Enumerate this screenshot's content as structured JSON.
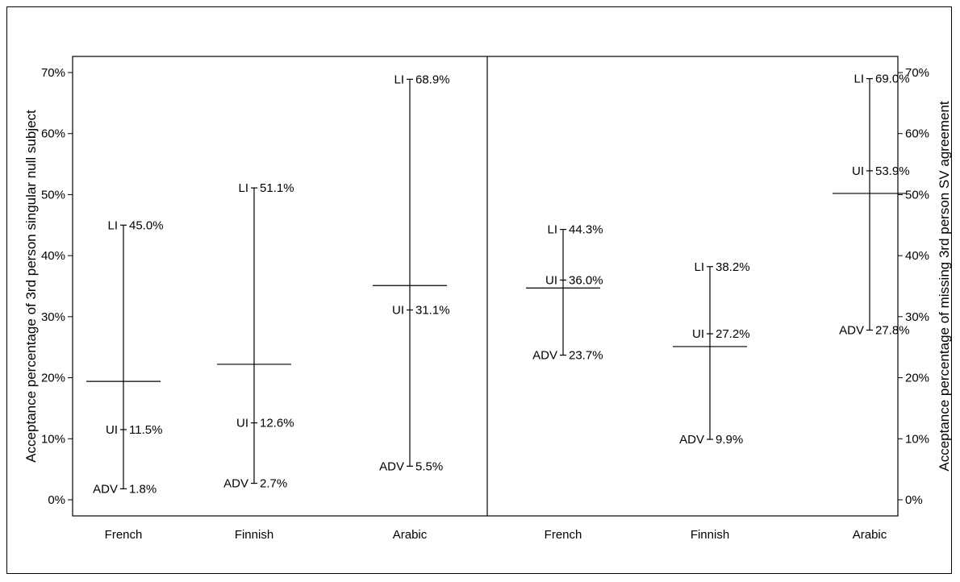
{
  "chart_data": [
    {
      "type": "interval",
      "ylabel": "Acceptance percentage of 3rd person singular null subject",
      "y_axis_side": "left",
      "ylim": [
        0,
        70
      ],
      "yticks": [
        "0%",
        "10%",
        "20%",
        "30%",
        "40%",
        "50%",
        "60%",
        "70%"
      ],
      "categories": [
        "French",
        "Finnish",
        "Arabic"
      ],
      "point_labels": {
        "upper": "LI",
        "middle": "UI",
        "lower": "ADV"
      },
      "series": [
        {
          "category": "French",
          "LI": 45.0,
          "LI_label": "45.0%",
          "UI": 11.5,
          "UI_label": "11.5%",
          "ADV": 1.8,
          "ADV_label": "1.8%",
          "mean": 19.4
        },
        {
          "category": "Finnish",
          "LI": 51.1,
          "LI_label": "51.1%",
          "UI": 12.6,
          "UI_label": "12.6%",
          "ADV": 2.7,
          "ADV_label": "2.7%",
          "mean": 22.2
        },
        {
          "category": "Arabic",
          "LI": 68.9,
          "LI_label": "68.9%",
          "UI": 31.1,
          "UI_label": "31.1%",
          "ADV": 5.5,
          "ADV_label": "5.5%",
          "mean": 35.1
        }
      ]
    },
    {
      "type": "interval",
      "ylabel": "Acceptance percentage of missing 3rd person SV agreement",
      "y_axis_side": "right",
      "ylim": [
        0,
        70
      ],
      "yticks": [
        "0%",
        "10%",
        "20%",
        "30%",
        "40%",
        "50%",
        "60%",
        "70%"
      ],
      "categories": [
        "French",
        "Finnish",
        "Arabic"
      ],
      "point_labels": {
        "upper": "LI",
        "middle": "UI",
        "lower": "ADV"
      },
      "series": [
        {
          "category": "French",
          "LI": 44.3,
          "LI_label": "44.3%",
          "UI": 36.0,
          "UI_label": "36.0%",
          "ADV": 23.7,
          "ADV_label": "23.7%",
          "mean": 34.7
        },
        {
          "category": "Finnish",
          "LI": 38.2,
          "LI_label": "38.2%",
          "UI": 27.2,
          "UI_label": "27.2%",
          "ADV": 9.9,
          "ADV_label": "9.9%",
          "mean": 25.1
        },
        {
          "category": "Arabic",
          "LI": 69.0,
          "LI_label": "69.0%",
          "UI": 53.9,
          "UI_label": "53.9%",
          "ADV": 27.8,
          "ADV_label": "27.8%",
          "mean": 50.2
        }
      ]
    }
  ]
}
